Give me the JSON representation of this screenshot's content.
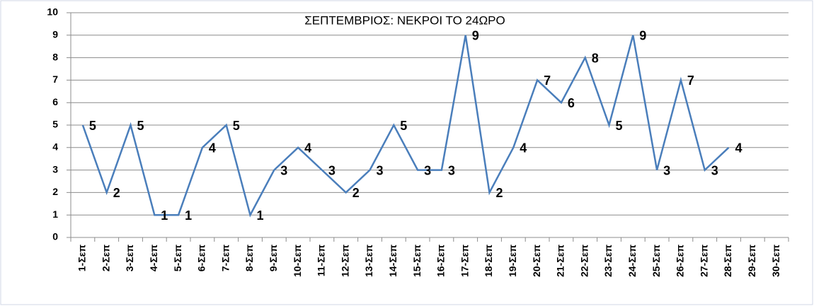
{
  "chart_data": {
    "type": "line",
    "title": "ΣΕΠΤΕΜΒΡΙΟΣ: ΝΕΚΡΟΙ ΤΟ 24ΩΡΟ",
    "categories": [
      "1-Σεπ",
      "2-Σεπ",
      "3-Σεπ",
      "4-Σεπ",
      "5-Σεπ",
      "6-Σεπ",
      "7-Σεπ",
      "8-Σεπ",
      "9-Σεπ",
      "10-Σεπ",
      "11-Σεπ",
      "12-Σεπ",
      "13-Σεπ",
      "14-Σεπ",
      "15-Σεπ",
      "16-Σεπ",
      "17-Σεπ",
      "18-Σεπ",
      "19-Σεπ",
      "20-Σεπ",
      "21-Σεπ",
      "22-Σεπ",
      "23-Σεπ",
      "24-Σεπ",
      "25-Σεπ",
      "26-Σεπ",
      "27-Σεπ",
      "28-Σεπ",
      "29-Σεπ",
      "30-Σεπ"
    ],
    "values": [
      5,
      2,
      5,
      1,
      1,
      4,
      5,
      1,
      3,
      4,
      3,
      2,
      3,
      5,
      3,
      3,
      9,
      2,
      4,
      7,
      6,
      8,
      5,
      9,
      3,
      7,
      3,
      4,
      null,
      null
    ],
    "color": "#4a7ebb",
    "ylim": [
      0,
      10
    ],
    "yticks": [
      0,
      1,
      2,
      3,
      4,
      5,
      6,
      7,
      8,
      9,
      10
    ],
    "grid": true,
    "data_labels": true
  }
}
